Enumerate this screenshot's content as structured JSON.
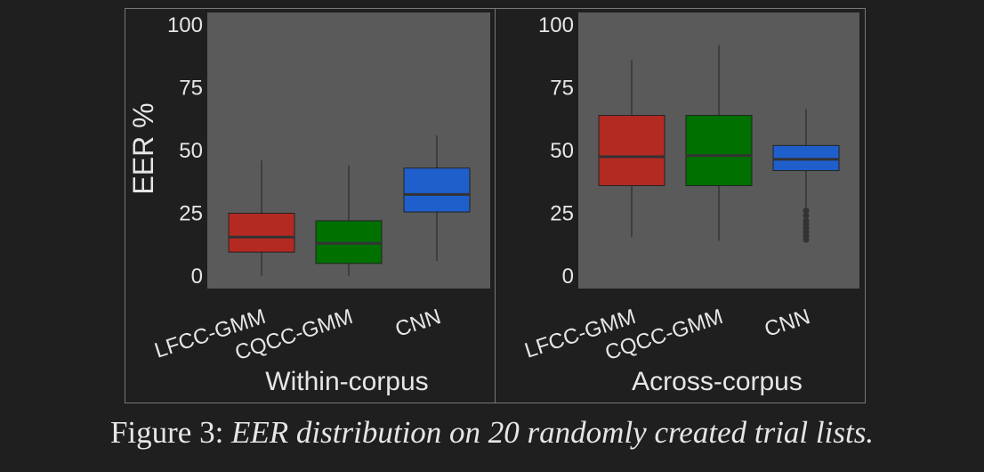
{
  "chart_data": [
    {
      "type": "box",
      "title": "",
      "xlabel": "Within-corpus",
      "ylabel": "EER %",
      "ylim": [
        -5,
        105
      ],
      "yticks": [
        0,
        25,
        50,
        75,
        100
      ],
      "grid": false,
      "categories": [
        "LFCC-GMM",
        "CQCC-GMM",
        "CNN"
      ],
      "boxes": [
        {
          "category": "LFCC-GMM",
          "color": "#b22a22",
          "min": 0,
          "q1": 9.5,
          "median": 15.5,
          "q3": 25,
          "max": 46,
          "outliers": []
        },
        {
          "category": "CQCC-GMM",
          "color": "#007000",
          "min": 0,
          "q1": 5,
          "median": 13,
          "q3": 22,
          "max": 44,
          "outliers": []
        },
        {
          "category": "CNN",
          "color": "#1f5fcc",
          "min": 6,
          "q1": 25.5,
          "median": 32.5,
          "q3": 43,
          "max": 56,
          "outliers": []
        }
      ]
    },
    {
      "type": "box",
      "title": "",
      "xlabel": "Across-corpus",
      "ylabel": "",
      "ylim": [
        -5,
        105
      ],
      "yticks": [
        0,
        25,
        50,
        75,
        100
      ],
      "grid": false,
      "categories": [
        "LFCC-GMM",
        "CQCC-GMM",
        "CNN"
      ],
      "boxes": [
        {
          "category": "LFCC-GMM",
          "color": "#b22a22",
          "min": 15.5,
          "q1": 36,
          "median": 47.5,
          "q3": 64,
          "max": 86,
          "outliers": []
        },
        {
          "category": "CQCC-GMM",
          "color": "#007000",
          "min": 14,
          "q1": 36,
          "median": 48,
          "q3": 64,
          "max": 92,
          "outliers": []
        },
        {
          "category": "CNN",
          "color": "#1f5fcc",
          "min": 27,
          "q1": 42,
          "median": 46.5,
          "q3": 52,
          "max": 66.5,
          "outliers": [
            14.5,
            16,
            17.5,
            19,
            20.5,
            22,
            24,
            26
          ]
        }
      ]
    }
  ],
  "caption": {
    "label": "Figure 3:",
    "text": "EER distribution on 20 randomly created trial lists."
  },
  "colors": {
    "figure_background": "#1f1f1f",
    "plot_background": "#5a5a5a",
    "panel_border": "#777777",
    "median_line": "#333333",
    "whisker": "#222222",
    "outlier": "#333333"
  }
}
